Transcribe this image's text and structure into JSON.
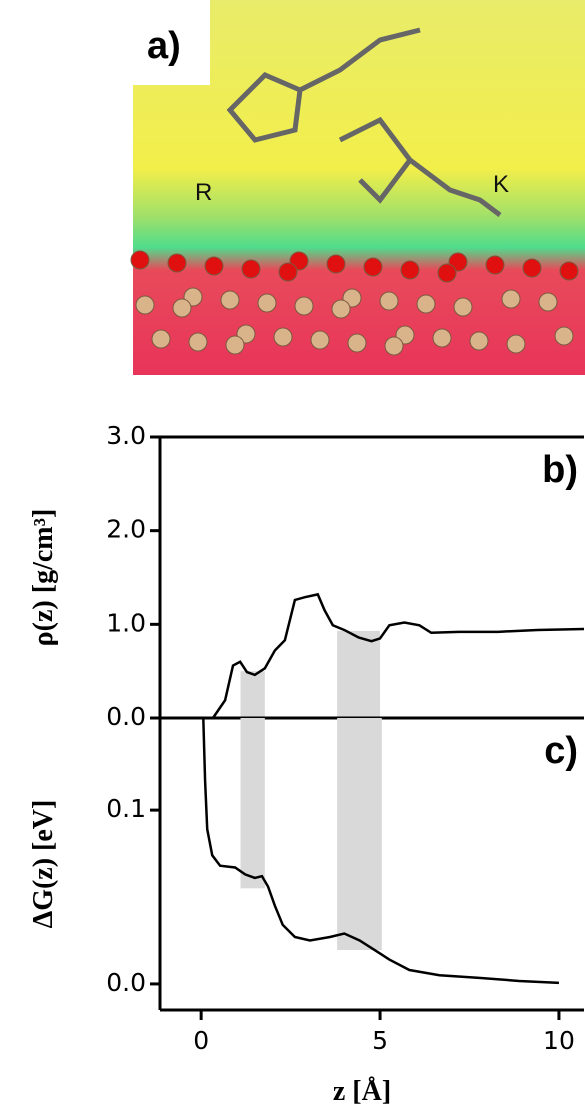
{
  "panel_a": {
    "label": "a)",
    "residues": [
      "R",
      "K"
    ]
  },
  "chart_data": [
    {
      "type": "line",
      "panel_label": "b)",
      "y_label": "ρ(z) [g/cm³]",
      "xlim": [
        -1.15,
        10.7
      ],
      "ylim": [
        0,
        3
      ],
      "yticks": [
        {
          "value": 0,
          "label": "0.0"
        },
        {
          "value": 1,
          "label": "1.0"
        },
        {
          "value": 2,
          "label": "2.0"
        },
        {
          "value": 3,
          "label": "3.0"
        }
      ],
      "bands": [
        {
          "x": [
            1.1,
            1.78
          ],
          "y": [
            0,
            0.5
          ]
        },
        {
          "x": [
            3.8,
            5.0
          ],
          "y": [
            0,
            0.93
          ]
        }
      ],
      "series": [
        {
          "color": "#000000",
          "x": [
            0.33,
            0.67,
            0.89,
            1.09,
            1.28,
            1.5,
            1.78,
            2.06,
            2.34,
            2.62,
            2.9,
            3.26,
            3.45,
            3.68,
            4.0,
            4.4,
            4.76,
            5.0,
            5.26,
            5.68,
            6.1,
            6.43,
            7.2,
            8.3,
            9.4,
            10.7
          ],
          "values": [
            0,
            0.19,
            0.56,
            0.6,
            0.49,
            0.46,
            0.53,
            0.72,
            0.83,
            1.26,
            1.29,
            1.32,
            1.15,
            0.99,
            0.94,
            0.86,
            0.82,
            0.85,
            0.99,
            1.02,
            0.99,
            0.91,
            0.92,
            0.92,
            0.94,
            0.95
          ]
        }
      ]
    },
    {
      "type": "line",
      "panel_label": "c)",
      "y_label": "ΔG(z) [eV]",
      "x_label": "z [Å]",
      "xlim": [
        -1.15,
        10.7
      ],
      "ylim": [
        -0.015,
        0.153
      ],
      "xticks": [
        0,
        5,
        10
      ],
      "yticks": [
        {
          "value": 0,
          "label": "0.0"
        },
        0.1
      ],
      "bands": [
        {
          "x": [
            1.1,
            1.78
          ],
          "y": [
            0.055,
            0.153
          ]
        },
        {
          "x": [
            3.8,
            5.05
          ],
          "y": [
            0.0195,
            0.153
          ]
        }
      ],
      "series": [
        {
          "color": "#000000",
          "x": [
            0.06,
            0.11,
            0.17,
            0.31,
            0.53,
            0.95,
            1.23,
            1.5,
            1.7,
            1.87,
            2.06,
            2.28,
            2.62,
            3.04,
            3.6,
            4.0,
            4.43,
            4.85,
            5.26,
            5.82,
            6.66,
            7.77,
            8.89,
            10.0
          ],
          "values": [
            0.153,
            0.117,
            0.089,
            0.074,
            0.068,
            0.067,
            0.063,
            0.061,
            0.062,
            0.056,
            0.045,
            0.034,
            0.027,
            0.025,
            0.027,
            0.029,
            0.025,
            0.0195,
            0.014,
            0.008,
            0.005,
            0.0035,
            0.0017,
            0.0006
          ]
        }
      ]
    }
  ]
}
